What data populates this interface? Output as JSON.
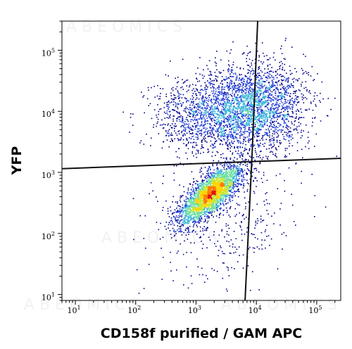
{
  "watermark": "ABEOMICS",
  "chart_data": {
    "type": "scatter",
    "subtype": "flow-cytometry-density-dot-plot",
    "xlabel": "CD158f purified / GAM APC",
    "ylabel": "YFP",
    "x_scale": "log",
    "y_scale": "log",
    "xlim": [
      6,
      250000
    ],
    "ylim": [
      8,
      300000
    ],
    "x_ticks": [
      {
        "base": "10",
        "exp": "1",
        "value": 10
      },
      {
        "base": "10",
        "exp": "2",
        "value": 100
      },
      {
        "base": "10",
        "exp": "3",
        "value": 1000
      },
      {
        "base": "10",
        "exp": "4",
        "value": 10000
      },
      {
        "base": "10",
        "exp": "5",
        "value": 100000
      }
    ],
    "y_ticks": [
      {
        "base": "10",
        "exp": "1",
        "value": 10
      },
      {
        "base": "10",
        "exp": "2",
        "value": 100
      },
      {
        "base": "10",
        "exp": "3",
        "value": 1000
      },
      {
        "base": "10",
        "exp": "4",
        "value": 10000
      },
      {
        "base": "10",
        "exp": "5",
        "value": 100000
      }
    ],
    "grid": false,
    "legend": "none",
    "density_colors": [
      "#00008b",
      "#1f3cd6",
      "#39b5d8",
      "#6fe0a0",
      "#c8e636",
      "#ffd400",
      "#ff7a00",
      "#e01010"
    ],
    "populations": [
      {
        "center": [
          1700,
          450
        ],
        "spread": [
          0.26,
          0.24
        ],
        "correlation": 0.75,
        "density": "high"
      },
      {
        "center": [
          8000,
          12000
        ],
        "spread": [
          0.45,
          0.35
        ],
        "correlation": 0.1,
        "density": "medium"
      },
      {
        "center": [
          900,
          8000
        ],
        "spread": [
          0.4,
          0.3
        ],
        "correlation": 0.0,
        "density": "low"
      },
      {
        "center": [
          3000,
          200
        ],
        "spread": [
          0.6,
          0.6
        ],
        "correlation": 0.2,
        "density": "sparse"
      }
    ],
    "quadrant_gates": {
      "horizontal": [
        [
          6,
          1150
        ],
        [
          250000,
          1700
        ]
      ],
      "vertical": [
        [
          6500,
          8
        ],
        [
          8500,
          2000
        ],
        [
          10500,
          300000
        ]
      ]
    }
  }
}
